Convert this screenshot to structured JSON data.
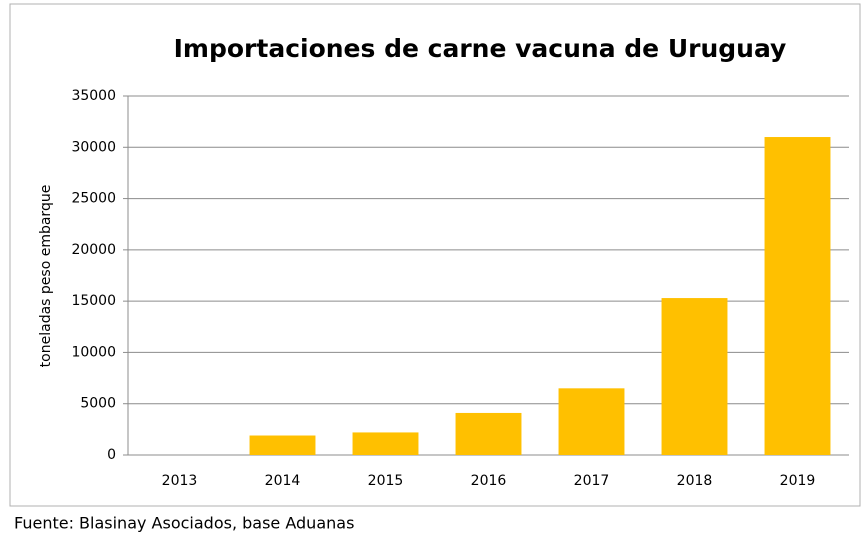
{
  "chart_data": {
    "type": "bar",
    "title": "Importaciones de carne vacuna de Uruguay",
    "y_label": "toneladas peso embarque",
    "source": "Fuente: Blasinay Asociados, base Aduanas",
    "categories": [
      "2013",
      "2014",
      "2015",
      "2016",
      "2017",
      "2018",
      "2019"
    ],
    "values": [
      0,
      1900,
      2200,
      4100,
      6500,
      15300,
      31000
    ],
    "color": "#ffc000",
    "ylim": [
      0,
      35000
    ],
    "yticks": [
      0,
      5000,
      10000,
      15000,
      20000,
      25000,
      30000,
      35000
    ],
    "grid": true
  }
}
